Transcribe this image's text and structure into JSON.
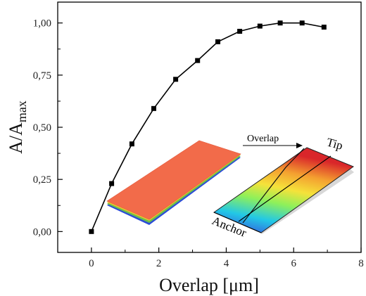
{
  "chart_data": {
    "type": "line",
    "title": "",
    "xlabel": "Overlap [μm]",
    "ylabel_main": "A/A",
    "ylabel_sub": "max",
    "xlim": [
      -1,
      8
    ],
    "ylim": [
      -0.1,
      1.1
    ],
    "x_ticks": [
      0,
      2,
      4,
      6,
      8
    ],
    "x_tick_labels": [
      "0",
      "2",
      "4",
      "6",
      "8"
    ],
    "y_ticks": [
      0,
      0.25,
      0.5,
      0.75,
      1.0
    ],
    "y_tick_labels": [
      "0,00",
      "0,25",
      "0,50",
      "0,75",
      "1,00"
    ],
    "grid": false,
    "marker": "square",
    "series": [
      {
        "x": [
          0,
          0.6,
          1.2,
          1.85,
          2.5,
          3.15,
          3.75,
          4.4,
          5.0,
          5.6,
          6.25,
          6.9
        ],
        "y": [
          0.0,
          0.23,
          0.42,
          0.59,
          0.73,
          0.82,
          0.91,
          0.96,
          0.985,
          1.0,
          1.0,
          0.98
        ]
      }
    ],
    "annotations": {
      "overlap_arrow_label": "Overlap",
      "tip_label": "Tip",
      "anchor_label": "Anchor"
    }
  },
  "colors": {
    "line": "#000000",
    "marker": "#000000",
    "plate_orange": "#f26b4a",
    "gradient_stops": [
      "#3b3bdc",
      "#22c8e6",
      "#8ef05a",
      "#f5e23a",
      "#f4a030",
      "#d9262a"
    ]
  }
}
